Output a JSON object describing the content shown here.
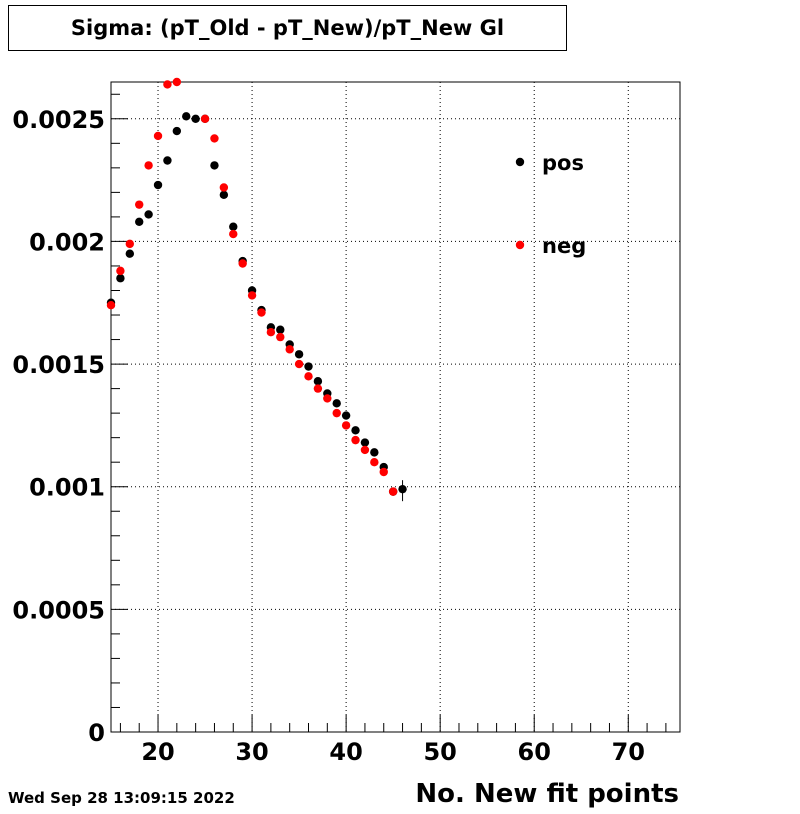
{
  "chart_data": {
    "type": "scatter",
    "title": "Sigma: (pT_Old - pT_New)/pT_New Gl",
    "xlabel": "No. New fit points",
    "ylabel": "",
    "xlim": [
      15,
      75.5
    ],
    "ylim": [
      0,
      0.00265
    ],
    "x_ticks": [
      20,
      30,
      40,
      50,
      60,
      70
    ],
    "x_tick_labels": [
      "20",
      "30",
      "40",
      "50",
      "60",
      "70"
    ],
    "y_ticks": [
      0,
      0.0005,
      0.001,
      0.0015,
      0.002,
      0.0025
    ],
    "y_tick_labels": [
      "0",
      "0.0005",
      "0.001",
      "0.0015",
      "0.002",
      "0.0025"
    ],
    "grid": true,
    "legend_position": "top-right",
    "series": [
      {
        "name": "pos",
        "color": "#000000",
        "x": [
          15,
          16,
          17,
          18,
          19,
          20,
          21,
          22,
          23,
          24,
          25,
          26,
          27,
          28,
          29,
          30,
          31,
          32,
          33,
          34,
          35,
          36,
          37,
          38,
          39,
          40,
          41,
          42,
          43,
          44,
          45,
          46
        ],
        "y": [
          0.00175,
          0.00185,
          0.00195,
          0.00208,
          0.00211,
          0.00223,
          0.00233,
          0.00245,
          0.00251,
          0.0025,
          0.0025,
          0.00231,
          0.00219,
          0.00206,
          0.00192,
          0.0018,
          0.00172,
          0.00165,
          0.00164,
          0.00158,
          0.00154,
          0.00149,
          0.00143,
          0.00138,
          0.00134,
          0.00129,
          0.00123,
          0.00118,
          0.00114,
          0.00108,
          0.00098,
          0.00099
        ]
      },
      {
        "name": "neg",
        "color": "#ff0000",
        "x": [
          15,
          16,
          17,
          18,
          19,
          20,
          21,
          22,
          25,
          26,
          27,
          28,
          29,
          30,
          31,
          32,
          33,
          34,
          35,
          36,
          37,
          38,
          39,
          40,
          41,
          42,
          43,
          44,
          45
        ],
        "y": [
          0.00174,
          0.00188,
          0.00199,
          0.00215,
          0.00231,
          0.00243,
          0.00264,
          0.00265,
          0.0025,
          0.00242,
          0.00222,
          0.00203,
          0.00191,
          0.00178,
          0.00171,
          0.00163,
          0.00161,
          0.00156,
          0.0015,
          0.00145,
          0.0014,
          0.00136,
          0.0013,
          0.00125,
          0.00119,
          0.00115,
          0.0011,
          0.00106,
          0.00098
        ]
      }
    ]
  },
  "footer": {
    "timestamp": "Wed Sep 28 13:09:15 2022"
  }
}
